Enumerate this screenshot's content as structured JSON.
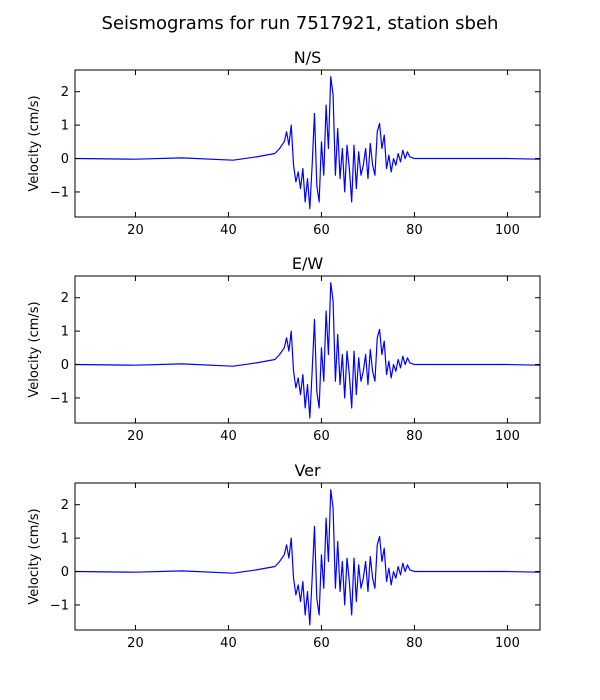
{
  "figure": {
    "title": "Seismograms for run 7517921, station sbeh"
  },
  "style": {
    "line_color": "#0000ff",
    "axis_color": "#000000",
    "background": "#ffffff"
  },
  "chart_data": [
    {
      "type": "line",
      "title": "N/S",
      "xlabel": "",
      "ylabel": "Velocity (cm/s)",
      "xlim": [
        7,
        107
      ],
      "ylim": [
        -1.75,
        2.65
      ],
      "xticks": [
        20,
        40,
        60,
        80,
        100
      ],
      "yticks": [
        -1,
        0,
        1,
        2
      ],
      "grid": false,
      "series": [
        {
          "x": [
            7,
            20,
            30,
            41,
            46,
            50,
            51,
            52,
            52.5,
            53,
            53.5,
            54,
            54.5,
            55,
            55.5,
            56,
            56.5,
            57,
            57.5,
            58,
            58.5,
            59,
            59.5,
            60,
            60.5,
            61,
            61.5,
            62,
            62.5,
            63,
            63.5,
            64,
            64.5,
            65,
            65.5,
            66,
            66.5,
            67,
            67.5,
            68,
            68.5,
            69,
            69.5,
            70,
            70.5,
            71,
            71.5,
            72,
            72.5,
            73,
            73.5,
            74,
            74.5,
            75,
            75.5,
            76,
            76.5,
            77,
            77.5,
            78,
            78.5,
            79,
            80,
            90,
            100,
            107
          ],
          "y": [
            0,
            -0.02,
            0.02,
            -0.05,
            0.05,
            0.15,
            0.3,
            0.5,
            0.8,
            0.4,
            1.0,
            -0.2,
            -0.7,
            -0.4,
            -0.9,
            -0.3,
            -1.3,
            -0.6,
            -1.5,
            -0.2,
            1.35,
            -0.8,
            -1.3,
            0.5,
            -0.5,
            1.6,
            0.3,
            2.45,
            1.9,
            -0.5,
            0.9,
            -0.6,
            0.3,
            -1.0,
            0.4,
            -0.3,
            -1.3,
            0.4,
            -0.9,
            0.2,
            -0.5,
            -0.2,
            0.3,
            -0.6,
            0.45,
            -0.2,
            -0.5,
            0.8,
            1.05,
            0.3,
            0.7,
            -0.3,
            0.1,
            -0.4,
            0.0,
            -0.2,
            0.15,
            -0.1,
            0.25,
            0.0,
            0.2,
            0.05,
            0,
            0,
            0,
            -0.02
          ]
        }
      ]
    },
    {
      "type": "line",
      "title": "E/W",
      "xlabel": "",
      "ylabel": "Velocity (cm/s)",
      "xlim": [
        7,
        107
      ],
      "ylim": [
        -1.75,
        2.65
      ],
      "xticks": [
        20,
        40,
        60,
        80,
        100
      ],
      "yticks": [
        -1,
        0,
        1,
        2
      ],
      "grid": false,
      "series": [
        {
          "x": [
            7,
            20,
            30,
            41,
            46,
            50,
            51,
            52,
            52.5,
            53,
            53.5,
            54,
            54.5,
            55,
            55.5,
            56,
            56.5,
            57,
            57.5,
            58,
            58.5,
            59,
            59.5,
            60,
            60.5,
            61,
            61.5,
            62,
            62.5,
            63,
            63.5,
            64,
            64.5,
            65,
            65.5,
            66,
            66.5,
            67,
            67.5,
            68,
            68.5,
            69,
            69.5,
            70,
            70.5,
            71,
            71.5,
            72,
            72.5,
            73,
            73.5,
            74,
            74.5,
            75,
            75.5,
            76,
            76.5,
            77,
            77.5,
            78,
            78.5,
            79,
            80,
            90,
            100,
            107
          ],
          "y": [
            0,
            -0.02,
            0.02,
            -0.05,
            0.05,
            0.15,
            0.3,
            0.5,
            0.8,
            0.4,
            1.0,
            -0.2,
            -0.7,
            -0.4,
            -0.9,
            -0.3,
            -1.3,
            -0.6,
            -1.6,
            -0.2,
            1.35,
            -0.8,
            -1.3,
            0.5,
            -0.5,
            1.6,
            0.3,
            2.45,
            1.9,
            -0.5,
            0.9,
            -0.6,
            0.3,
            -1.0,
            0.4,
            -0.3,
            -1.3,
            0.4,
            -0.9,
            0.2,
            -0.5,
            -0.2,
            0.3,
            -0.6,
            0.45,
            -0.2,
            -0.5,
            0.8,
            1.05,
            0.3,
            0.7,
            -0.3,
            0.1,
            -0.4,
            0.0,
            -0.2,
            0.15,
            -0.1,
            0.25,
            0.0,
            0.2,
            0.05,
            0,
            0,
            0,
            -0.02
          ]
        }
      ]
    },
    {
      "type": "line",
      "title": "Ver",
      "xlabel": "",
      "ylabel": "Velocity (cm/s)",
      "xlim": [
        7,
        107
      ],
      "ylim": [
        -1.75,
        2.65
      ],
      "xticks": [
        20,
        40,
        60,
        80,
        100
      ],
      "yticks": [
        -1,
        0,
        1,
        2
      ],
      "grid": false,
      "series": [
        {
          "x": [
            7,
            20,
            30,
            41,
            46,
            50,
            51,
            52,
            52.5,
            53,
            53.5,
            54,
            54.5,
            55,
            55.5,
            56,
            56.5,
            57,
            57.5,
            58,
            58.5,
            59,
            59.5,
            60,
            60.5,
            61,
            61.5,
            62,
            62.5,
            63,
            63.5,
            64,
            64.5,
            65,
            65.5,
            66,
            66.5,
            67,
            67.5,
            68,
            68.5,
            69,
            69.5,
            70,
            70.5,
            71,
            71.5,
            72,
            72.5,
            73,
            73.5,
            74,
            74.5,
            75,
            75.5,
            76,
            76.5,
            77,
            77.5,
            78,
            78.5,
            79,
            80,
            90,
            100,
            107
          ],
          "y": [
            0,
            -0.02,
            0.02,
            -0.05,
            0.05,
            0.15,
            0.3,
            0.5,
            0.8,
            0.4,
            1.0,
            -0.2,
            -0.7,
            -0.4,
            -0.9,
            -0.3,
            -1.3,
            -0.6,
            -1.6,
            -0.2,
            1.35,
            -0.8,
            -1.3,
            0.5,
            -0.5,
            1.6,
            0.3,
            2.45,
            1.9,
            -0.5,
            0.9,
            -0.6,
            0.3,
            -1.0,
            0.4,
            -0.3,
            -1.3,
            0.4,
            -0.9,
            0.2,
            -0.5,
            -0.2,
            0.3,
            -0.6,
            0.45,
            -0.2,
            -0.5,
            0.8,
            1.05,
            0.3,
            0.7,
            -0.3,
            0.1,
            -0.4,
            0.0,
            -0.2,
            0.15,
            -0.1,
            0.25,
            0.0,
            0.2,
            0.05,
            0,
            0,
            0,
            -0.02
          ]
        }
      ]
    }
  ]
}
